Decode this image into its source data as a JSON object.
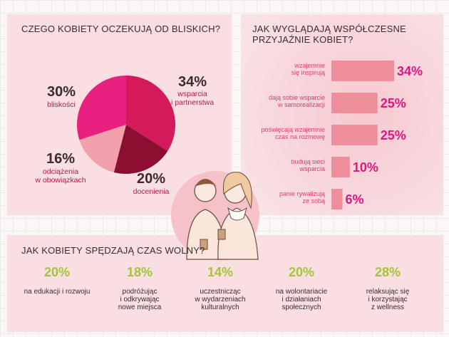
{
  "chart_data": [
    {
      "type": "pie",
      "title": "CZEGO KOBIETY OCZEKUJĄ OD BLISKICH?",
      "categories": [
        "wsparcia\ni partnerstwa",
        "docenienia",
        "odciążenia\nw obowiązkach",
        "bliskości"
      ],
      "values": [
        34,
        20,
        16,
        30
      ],
      "value_labels": [
        "34%",
        "20%",
        "16%",
        "30%"
      ],
      "colors": [
        "#d51a5c",
        "#8c0f32",
        "#f2a1ac",
        "#e8217f"
      ]
    },
    {
      "type": "bar",
      "orientation": "horizontal",
      "title": "JAK WYGLĄDAJĄ WSPÓŁCZESNE\nPRZYJAŹNIE KOBIET?",
      "categories": [
        "wzajemnie\nsię inspirują",
        "dają sobie wsparcie\nw samorealizacji",
        "poświęcają wzajemnie\nczas na rozmowę",
        "budują sieci\nwsparcia",
        "panie rywalizują\nze sobą"
      ],
      "values": [
        34,
        25,
        25,
        10,
        6
      ],
      "value_labels": [
        "34%",
        "25%",
        "25%",
        "10%",
        "6%"
      ],
      "color": "#ee8e9b",
      "xlim": [
        0,
        34
      ]
    }
  ],
  "leisure": {
    "title": "JAK KOBIETY SPĘDZAJĄ CZAS WOLNY?",
    "items": [
      {
        "value": "20%",
        "label": "na edukacji i rozwoju"
      },
      {
        "value": "18%",
        "label": "podróżując\ni odkrywając\nnowe miejsca"
      },
      {
        "value": "14%",
        "label": "uczestnicząc\nw wydarzeniach\nkulturalnych"
      },
      {
        "value": "20%",
        "label": "na wolontariacie\ni działaniach\nspołecznych"
      },
      {
        "value": "28%",
        "label": "relaksując się\ni korzystając\nz wellness"
      }
    ]
  }
}
